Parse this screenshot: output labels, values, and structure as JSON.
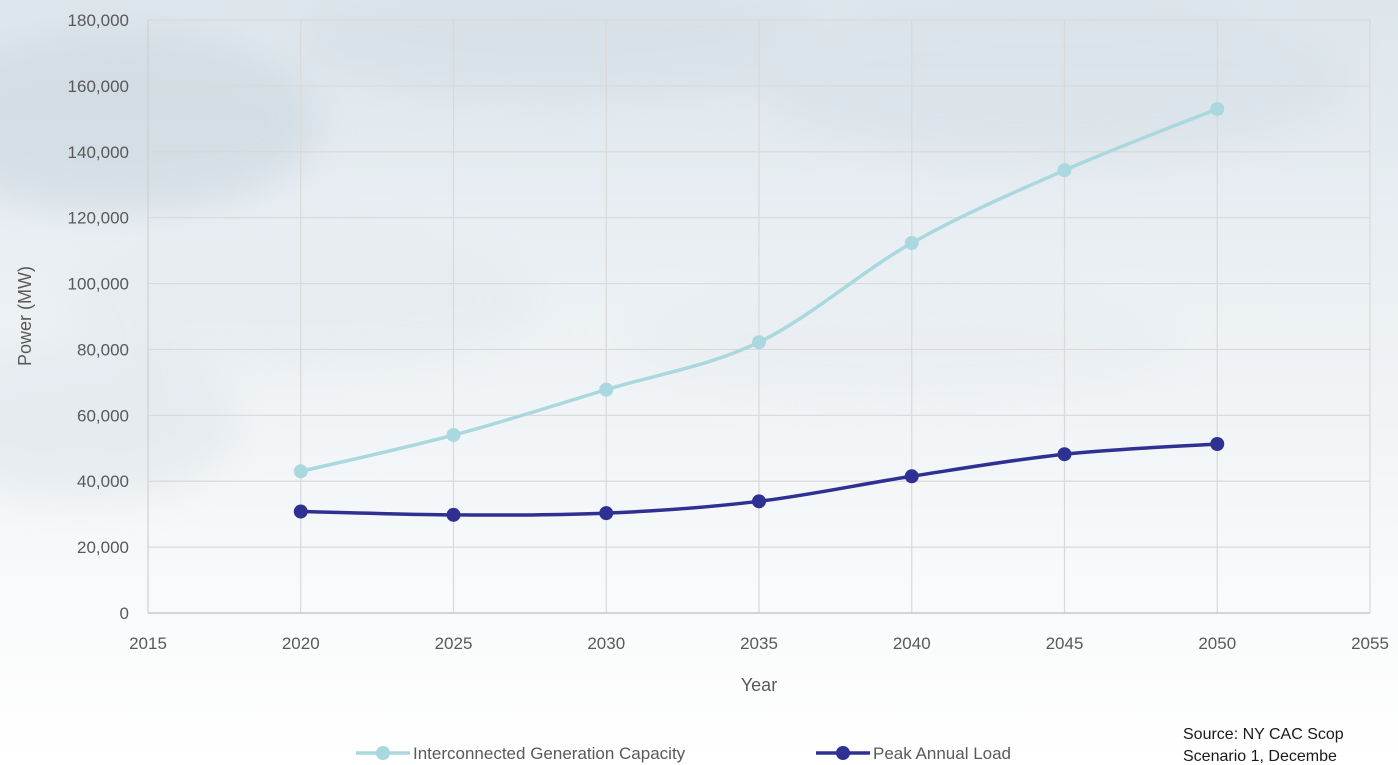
{
  "chart_data": {
    "type": "line",
    "title": "",
    "xlabel": "Year",
    "ylabel": "Power (MW)",
    "xlim": [
      2015,
      2055
    ],
    "ylim": [
      0,
      180000
    ],
    "x_ticks": [
      "2015",
      "2020",
      "2025",
      "2030",
      "2035",
      "2040",
      "2045",
      "2050",
      "2055"
    ],
    "y_ticks": [
      "0",
      "20,000",
      "40,000",
      "60,000",
      "80,000",
      "100,000",
      "120,000",
      "140,000",
      "160,000",
      "180,000"
    ],
    "grid": true,
    "legend_position": "bottom",
    "x": [
      2020,
      2025,
      2030,
      2035,
      2040,
      2045,
      2050
    ],
    "series": [
      {
        "name": "Interconnected Generation Capacity",
        "color": "#a9d8de",
        "values": [
          43000,
          54000,
          67800,
          82200,
          112300,
          134400,
          153000
        ]
      },
      {
        "name": "Peak Annual Load",
        "color": "#2e3192",
        "values": [
          30800,
          29800,
          30300,
          33900,
          41500,
          48200,
          51300
        ]
      }
    ]
  },
  "source": {
    "line1": "Source: NY CAC Scop",
    "line2": "Scenario 1, Decembe"
  }
}
